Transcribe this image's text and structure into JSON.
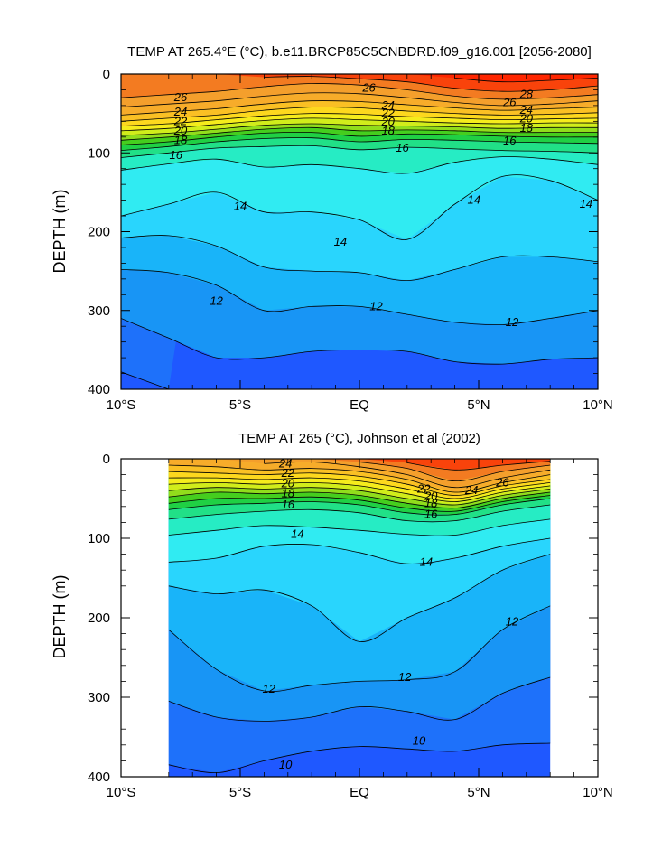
{
  "figure": {
    "background": "#ffffff",
    "colors": {
      "cold": "#1f5cff",
      "mid": "#33e6ff",
      "warm": "#f39a2c",
      "hot": "#ff1a00"
    }
  },
  "chart_data": [
    {
      "type": "heatmap",
      "plot_kind": "filled contour (depth-latitude section)",
      "title": "TEMP AT 265.4°E (°C), b.e11.BRCP85C5CNBDRD.f09_g16.001 [2056-2080]",
      "xlabel": "",
      "ylabel": "DEPTH (m)",
      "xlim": [
        -10,
        10
      ],
      "ylim": [
        400,
        0
      ],
      "x_tick_values": [
        -10,
        -5,
        0,
        5,
        10
      ],
      "x_tick_labels": [
        "10°S",
        "5°S",
        "EQ",
        "5°N",
        "10°N"
      ],
      "y_tick_values": [
        0,
        100,
        200,
        300,
        400
      ],
      "y_tick_labels": [
        "0",
        "100",
        "200",
        "300",
        "400"
      ],
      "data_x_range": [
        -10,
        10
      ],
      "contour_interval": 1,
      "lat": [
        -10,
        -8,
        -6,
        -4,
        -2,
        0,
        2,
        4,
        6,
        8,
        10
      ],
      "isotherm_depths": [
        {
          "temp": 28,
          "depth": [
            null,
            null,
            null,
            null,
            null,
            null,
            null,
            5,
            10,
            8,
            5
          ]
        },
        {
          "temp": 27,
          "depth": [
            null,
            null,
            null,
            4,
            3,
            6,
            10,
            18,
            22,
            20,
            15
          ]
        },
        {
          "temp": 26,
          "depth": [
            30,
            26,
            22,
            16,
            12,
            14,
            20,
            28,
            32,
            30,
            26
          ]
        },
        {
          "temp": 25,
          "depth": [
            42,
            38,
            34,
            28,
            24,
            25,
            30,
            36,
            40,
            38,
            34
          ]
        },
        {
          "temp": 24,
          "depth": [
            52,
            48,
            44,
            38,
            34,
            35,
            39,
            43,
            46,
            44,
            42
          ]
        },
        {
          "temp": 23,
          "depth": [
            60,
            56,
            52,
            46,
            42,
            43,
            47,
            50,
            52,
            51,
            49
          ]
        },
        {
          "temp": 22,
          "depth": [
            66,
            63,
            58,
            53,
            50,
            51,
            54,
            56,
            58,
            57,
            56
          ]
        },
        {
          "temp": 21,
          "depth": [
            72,
            69,
            64,
            59,
            56,
            58,
            60,
            62,
            63,
            62,
            62
          ]
        },
        {
          "temp": 20,
          "depth": [
            78,
            75,
            70,
            65,
            63,
            65,
            66,
            67,
            69,
            68,
            68
          ]
        },
        {
          "temp": 19,
          "depth": [
            84,
            80,
            75,
            70,
            68,
            72,
            71,
            72,
            74,
            74,
            74
          ]
        },
        {
          "temp": 18,
          "depth": [
            90,
            86,
            80,
            75,
            74,
            79,
            76,
            77,
            79,
            80,
            80
          ]
        },
        {
          "temp": 17,
          "depth": [
            97,
            92,
            86,
            82,
            81,
            86,
            83,
            84,
            86,
            87,
            88
          ]
        },
        {
          "temp": 16,
          "depth": [
            106,
            100,
            94,
            92,
            91,
            96,
            93,
            95,
            97,
            98,
            100
          ]
        },
        {
          "temp": 15,
          "depth": [
            122,
            114,
            108,
            118,
            115,
            120,
            126,
            112,
            105,
            108,
            115
          ]
        },
        {
          "temp": 14,
          "depth": [
            180,
            165,
            150,
            175,
            175,
            185,
            210,
            165,
            130,
            135,
            160
          ]
        },
        {
          "temp": 13,
          "depth": [
            208,
            205,
            218,
            245,
            250,
            252,
            262,
            248,
            232,
            232,
            238
          ]
        },
        {
          "temp": 12,
          "depth": [
            248,
            252,
            268,
            300,
            295,
            295,
            305,
            315,
            318,
            310,
            300
          ]
        },
        {
          "temp": 11,
          "depth": [
            310,
            335,
            360,
            360,
            352,
            350,
            352,
            365,
            368,
            362,
            360
          ]
        },
        {
          "temp": 10,
          "depth": [
            378,
            400,
            null,
            null,
            null,
            null,
            null,
            null,
            null,
            null,
            null
          ]
        }
      ],
      "contour_labels": [
        {
          "text": "26",
          "x": -7.5,
          "y": 30
        },
        {
          "text": "24",
          "x": -7.5,
          "y": 48
        },
        {
          "text": "22",
          "x": -7.5,
          "y": 60
        },
        {
          "text": "20",
          "x": -7.5,
          "y": 72
        },
        {
          "text": "18",
          "x": -7.5,
          "y": 84
        },
        {
          "text": "16",
          "x": -7.7,
          "y": 103
        },
        {
          "text": "26",
          "x": 0.4,
          "y": 18
        },
        {
          "text": "24",
          "x": 1.2,
          "y": 40
        },
        {
          "text": "22",
          "x": 1.2,
          "y": 50
        },
        {
          "text": "20",
          "x": 1.2,
          "y": 61
        },
        {
          "text": "18",
          "x": 1.2,
          "y": 72
        },
        {
          "text": "16",
          "x": 1.8,
          "y": 94
        },
        {
          "text": "26",
          "x": 6.3,
          "y": 36
        },
        {
          "text": "28",
          "x": 7.0,
          "y": 26
        },
        {
          "text": "24",
          "x": 7.0,
          "y": 46
        },
        {
          "text": "20",
          "x": 7.0,
          "y": 57
        },
        {
          "text": "18",
          "x": 7.0,
          "y": 69
        },
        {
          "text": "16",
          "x": 6.3,
          "y": 85
        },
        {
          "text": "14",
          "x": -5.0,
          "y": 168
        },
        {
          "text": "14",
          "x": -0.8,
          "y": 213
        },
        {
          "text": "14",
          "x": 4.8,
          "y": 160
        },
        {
          "text": "14",
          "x": 9.5,
          "y": 165
        },
        {
          "text": "12",
          "x": -6.0,
          "y": 288
        },
        {
          "text": "12",
          "x": 0.7,
          "y": 295
        },
        {
          "text": "12",
          "x": 6.4,
          "y": 315
        }
      ]
    },
    {
      "type": "heatmap",
      "plot_kind": "filled contour (depth-latitude section)",
      "title": "TEMP AT 265 (°C), Johnson et al (2002)",
      "xlabel": "",
      "ylabel": "DEPTH (m)",
      "xlim": [
        -10,
        10
      ],
      "ylim": [
        400,
        0
      ],
      "x_tick_values": [
        -10,
        -5,
        0,
        5,
        10
      ],
      "x_tick_labels": [
        "10°S",
        "5°S",
        "EQ",
        "5°N",
        "10°N"
      ],
      "y_tick_values": [
        0,
        100,
        200,
        300,
        400
      ],
      "y_tick_labels": [
        "0",
        "100",
        "200",
        "300",
        "400"
      ],
      "data_x_range": [
        -8,
        8
      ],
      "contour_interval": 1,
      "lat": [
        -8,
        -6,
        -4,
        -2,
        0,
        2,
        4,
        6,
        8
      ],
      "isotherm_depths": [
        {
          "temp": 27,
          "depth": [
            null,
            null,
            null,
            null,
            null,
            5,
            14,
            8,
            3
          ]
        },
        {
          "temp": 26,
          "depth": [
            null,
            null,
            null,
            null,
            4,
            12,
            28,
            16,
            8
          ]
        },
        {
          "temp": 25,
          "depth": [
            null,
            null,
            6,
            4,
            10,
            20,
            36,
            24,
            14
          ]
        },
        {
          "temp": 24,
          "depth": [
            8,
            10,
            14,
            12,
            16,
            26,
            42,
            30,
            20
          ]
        },
        {
          "temp": 23,
          "depth": [
            16,
            18,
            20,
            18,
            22,
            32,
            46,
            34,
            26
          ]
        },
        {
          "temp": 22,
          "depth": [
            24,
            24,
            26,
            24,
            28,
            38,
            50,
            38,
            30
          ]
        },
        {
          "temp": 21,
          "depth": [
            32,
            30,
            32,
            30,
            34,
            44,
            54,
            42,
            34
          ]
        },
        {
          "temp": 20,
          "depth": [
            40,
            36,
            38,
            36,
            40,
            50,
            58,
            46,
            38
          ]
        },
        {
          "temp": 19,
          "depth": [
            48,
            42,
            44,
            42,
            46,
            56,
            62,
            50,
            42
          ]
        },
        {
          "temp": 18,
          "depth": [
            56,
            50,
            50,
            48,
            52,
            62,
            66,
            54,
            46
          ]
        },
        {
          "temp": 17,
          "depth": [
            64,
            58,
            56,
            54,
            58,
            68,
            70,
            58,
            50
          ]
        },
        {
          "temp": 16,
          "depth": [
            76,
            70,
            66,
            64,
            68,
            78,
            78,
            66,
            58
          ]
        },
        {
          "temp": 15,
          "depth": [
            96,
            90,
            84,
            86,
            90,
            95,
            96,
            84,
            76
          ]
        },
        {
          "temp": 14,
          "depth": [
            130,
            125,
            110,
            108,
            118,
            132,
            125,
            110,
            100
          ]
        },
        {
          "temp": 13,
          "depth": [
            160,
            170,
            165,
            185,
            230,
            200,
            175,
            140,
            120
          ]
        },
        {
          "temp": 12,
          "depth": [
            215,
            265,
            292,
            285,
            280,
            278,
            268,
            215,
            185
          ]
        },
        {
          "temp": 11,
          "depth": [
            305,
            325,
            330,
            325,
            312,
            318,
            328,
            295,
            275
          ]
        },
        {
          "temp": 10,
          "depth": [
            385,
            395,
            380,
            368,
            362,
            365,
            368,
            360,
            358
          ]
        }
      ],
      "contour_labels": [
        {
          "text": "24",
          "x": -3.1,
          "y": 6
        },
        {
          "text": "22",
          "x": -3.0,
          "y": 18
        },
        {
          "text": "20",
          "x": -3.0,
          "y": 31
        },
        {
          "text": "18",
          "x": -3.0,
          "y": 44
        },
        {
          "text": "16",
          "x": -3.0,
          "y": 58
        },
        {
          "text": "22",
          "x": 2.7,
          "y": 38
        },
        {
          "text": "20",
          "x": 3.0,
          "y": 47
        },
        {
          "text": "24",
          "x": 4.7,
          "y": 40
        },
        {
          "text": "26",
          "x": 6.0,
          "y": 30
        },
        {
          "text": "18",
          "x": 3.0,
          "y": 56
        },
        {
          "text": "16",
          "x": 3.0,
          "y": 70
        },
        {
          "text": "14",
          "x": -2.6,
          "y": 95
        },
        {
          "text": "14",
          "x": 2.8,
          "y": 130
        },
        {
          "text": "12",
          "x": 6.4,
          "y": 205
        },
        {
          "text": "12",
          "x": 1.9,
          "y": 275
        },
        {
          "text": "12",
          "x": -3.8,
          "y": 290
        },
        {
          "text": "10",
          "x": 2.5,
          "y": 355
        },
        {
          "text": "10",
          "x": -3.1,
          "y": 385
        }
      ]
    }
  ]
}
